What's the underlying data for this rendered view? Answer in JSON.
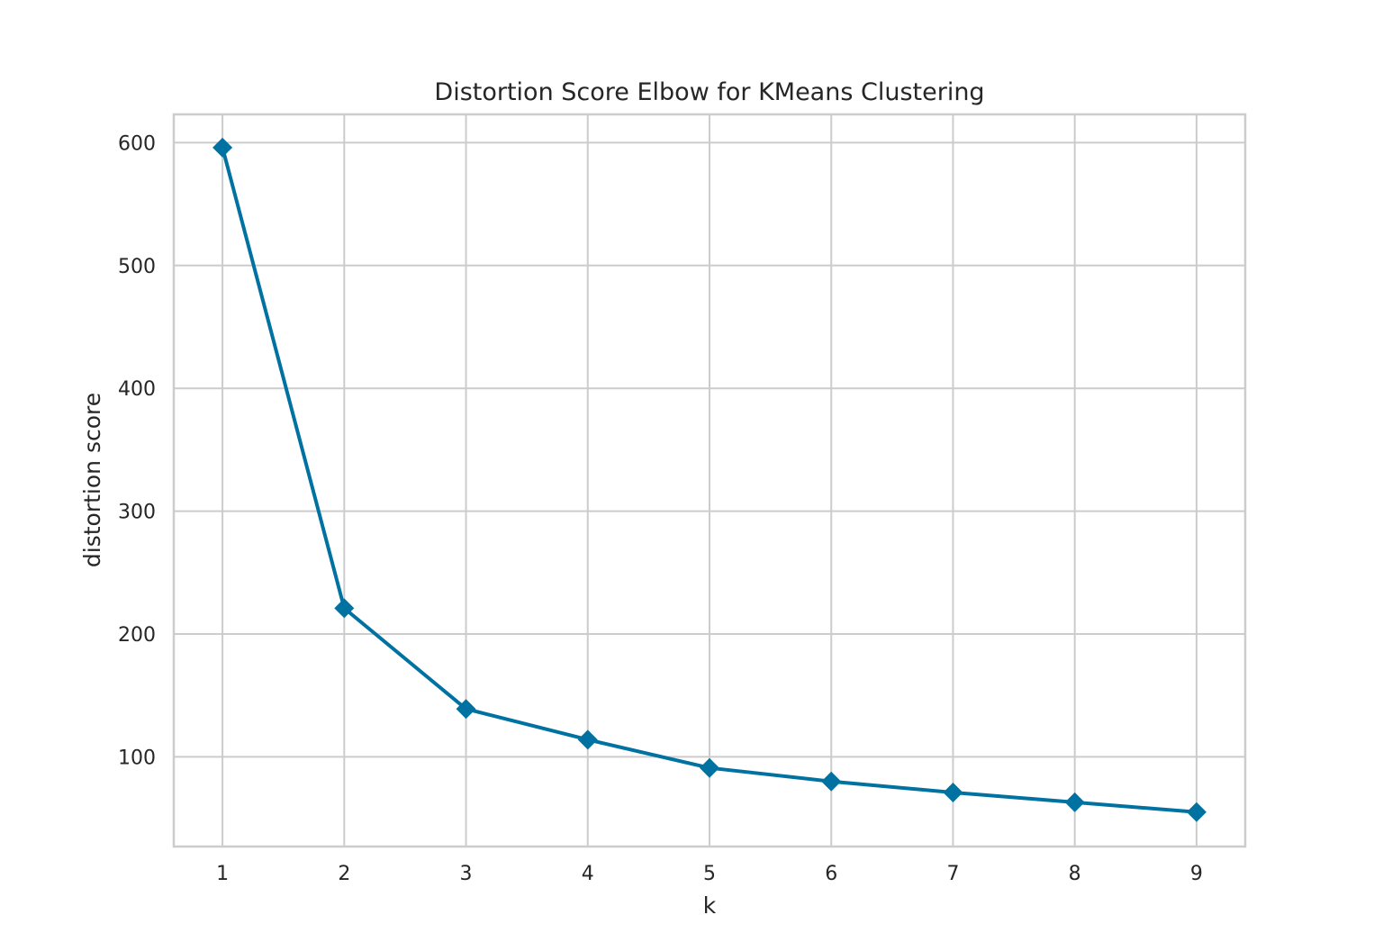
{
  "chart_data": {
    "type": "line",
    "title": "Distortion Score Elbow for KMeans Clustering",
    "xlabel": "k",
    "ylabel": "distortion score",
    "x": [
      1,
      2,
      3,
      4,
      5,
      6,
      7,
      8,
      9
    ],
    "xticks": [
      "1",
      "2",
      "3",
      "4",
      "5",
      "6",
      "7",
      "8",
      "9"
    ],
    "yticks": [
      "100",
      "200",
      "300",
      "400",
      "500",
      "600"
    ],
    "series": [
      {
        "values": [
          596,
          221,
          139,
          114,
          91,
          80,
          71,
          63,
          55
        ],
        "color": "#0072a2",
        "marker": "diamond"
      }
    ],
    "xlim": [
      0.6,
      9.4
    ],
    "ylim": [
      27,
      623
    ],
    "grid": true,
    "legend": "none"
  }
}
